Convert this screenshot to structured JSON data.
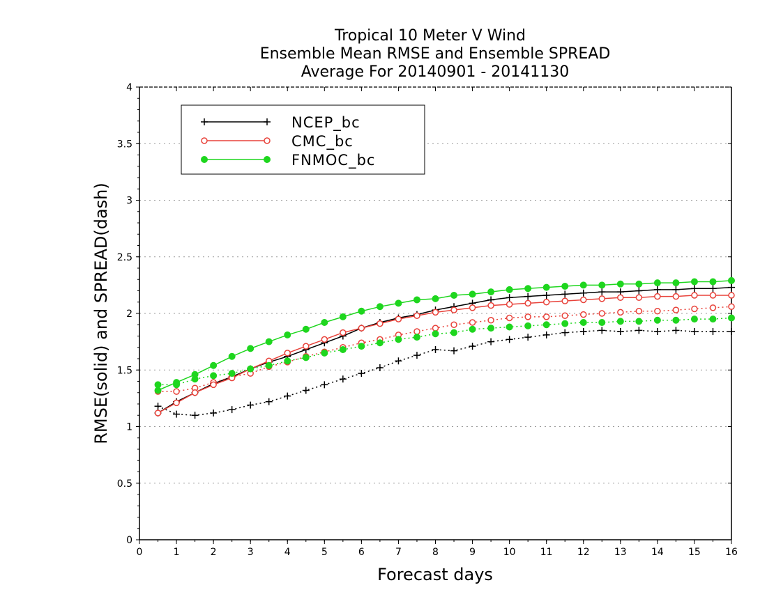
{
  "chart_data": {
    "type": "line",
    "title": [
      "Tropical 10 Meter V Wind",
      "Ensemble Mean RMSE and Ensemble SPREAD",
      "Average For 20140901 - 20141130"
    ],
    "xlabel": "Forecast days",
    "ylabel": "RMSE(solid) and SPREAD(dash)",
    "xlim": [
      0,
      16
    ],
    "ylim": [
      0,
      4
    ],
    "xticks": [
      0,
      1,
      2,
      3,
      4,
      5,
      6,
      7,
      8,
      9,
      10,
      11,
      12,
      13,
      14,
      15,
      16
    ],
    "xtick_labels": [
      "0",
      "1",
      "2",
      "3",
      "4",
      "5",
      "6",
      "7",
      "8",
      "9",
      "10",
      "11",
      "12",
      "13",
      "14",
      "15",
      "16"
    ],
    "yticks": [
      0,
      0.5,
      1,
      1.5,
      2,
      2.5,
      3,
      3.5,
      4
    ],
    "ytick_labels": [
      "0",
      "0.5",
      "1",
      "1.5",
      "2",
      "2.5",
      "3",
      "3.5",
      "4"
    ],
    "grid": "horizontal dotted",
    "legend_position": "top-left",
    "x": [
      0.5,
      1,
      1.5,
      2,
      2.5,
      3,
      3.5,
      4,
      4.5,
      5,
      5.5,
      6,
      6.5,
      7,
      7.5,
      8,
      8.5,
      9,
      9.5,
      10,
      10.5,
      11,
      11.5,
      12,
      12.5,
      13,
      13.5,
      14,
      14.5,
      15,
      15.5,
      16
    ],
    "series": [
      {
        "name": "NCEP_bc",
        "color": "#000000",
        "marker": "plus",
        "rmse": [
          1.12,
          1.22,
          1.3,
          1.38,
          1.44,
          1.51,
          1.57,
          1.62,
          1.68,
          1.74,
          1.8,
          1.87,
          1.92,
          1.96,
          1.99,
          2.03,
          2.06,
          2.09,
          2.12,
          2.14,
          2.15,
          2.16,
          2.17,
          2.18,
          2.19,
          2.19,
          2.2,
          2.21,
          2.21,
          2.22,
          2.22,
          2.23
        ],
        "spread": [
          1.18,
          1.11,
          1.1,
          1.12,
          1.15,
          1.19,
          1.22,
          1.27,
          1.32,
          1.37,
          1.42,
          1.47,
          1.52,
          1.58,
          1.63,
          1.68,
          1.67,
          1.71,
          1.75,
          1.77,
          1.79,
          1.81,
          1.83,
          1.84,
          1.85,
          1.84,
          1.85,
          1.84,
          1.85,
          1.84,
          1.84,
          1.84
        ]
      },
      {
        "name": "CMC_bc",
        "color": "#e8423a",
        "marker": "open-circle",
        "rmse": [
          1.12,
          1.21,
          1.3,
          1.37,
          1.43,
          1.51,
          1.58,
          1.65,
          1.71,
          1.77,
          1.83,
          1.87,
          1.91,
          1.95,
          1.98,
          2.01,
          2.03,
          2.05,
          2.07,
          2.08,
          2.09,
          2.1,
          2.11,
          2.12,
          2.13,
          2.14,
          2.14,
          2.15,
          2.15,
          2.16,
          2.16,
          2.16
        ],
        "spread": [
          1.31,
          1.31,
          1.34,
          1.39,
          1.44,
          1.47,
          1.53,
          1.57,
          1.62,
          1.66,
          1.7,
          1.74,
          1.77,
          1.81,
          1.84,
          1.87,
          1.9,
          1.92,
          1.94,
          1.96,
          1.97,
          1.97,
          1.98,
          1.99,
          2.0,
          2.01,
          2.02,
          2.02,
          2.03,
          2.04,
          2.05,
          2.06
        ]
      },
      {
        "name": "FNMOC_bc",
        "color": "#1ed61e",
        "marker": "filled-circle",
        "rmse": [
          1.32,
          1.39,
          1.46,
          1.54,
          1.62,
          1.69,
          1.75,
          1.81,
          1.86,
          1.92,
          1.97,
          2.02,
          2.06,
          2.09,
          2.12,
          2.13,
          2.16,
          2.17,
          2.19,
          2.21,
          2.22,
          2.23,
          2.24,
          2.25,
          2.25,
          2.26,
          2.26,
          2.27,
          2.27,
          2.28,
          2.28,
          2.29
        ],
        "spread": [
          1.37,
          1.37,
          1.42,
          1.45,
          1.47,
          1.51,
          1.54,
          1.58,
          1.61,
          1.65,
          1.68,
          1.71,
          1.74,
          1.77,
          1.79,
          1.82,
          1.83,
          1.86,
          1.87,
          1.88,
          1.89,
          1.9,
          1.91,
          1.92,
          1.92,
          1.93,
          1.93,
          1.94,
          1.94,
          1.95,
          1.95,
          1.96
        ]
      }
    ]
  }
}
